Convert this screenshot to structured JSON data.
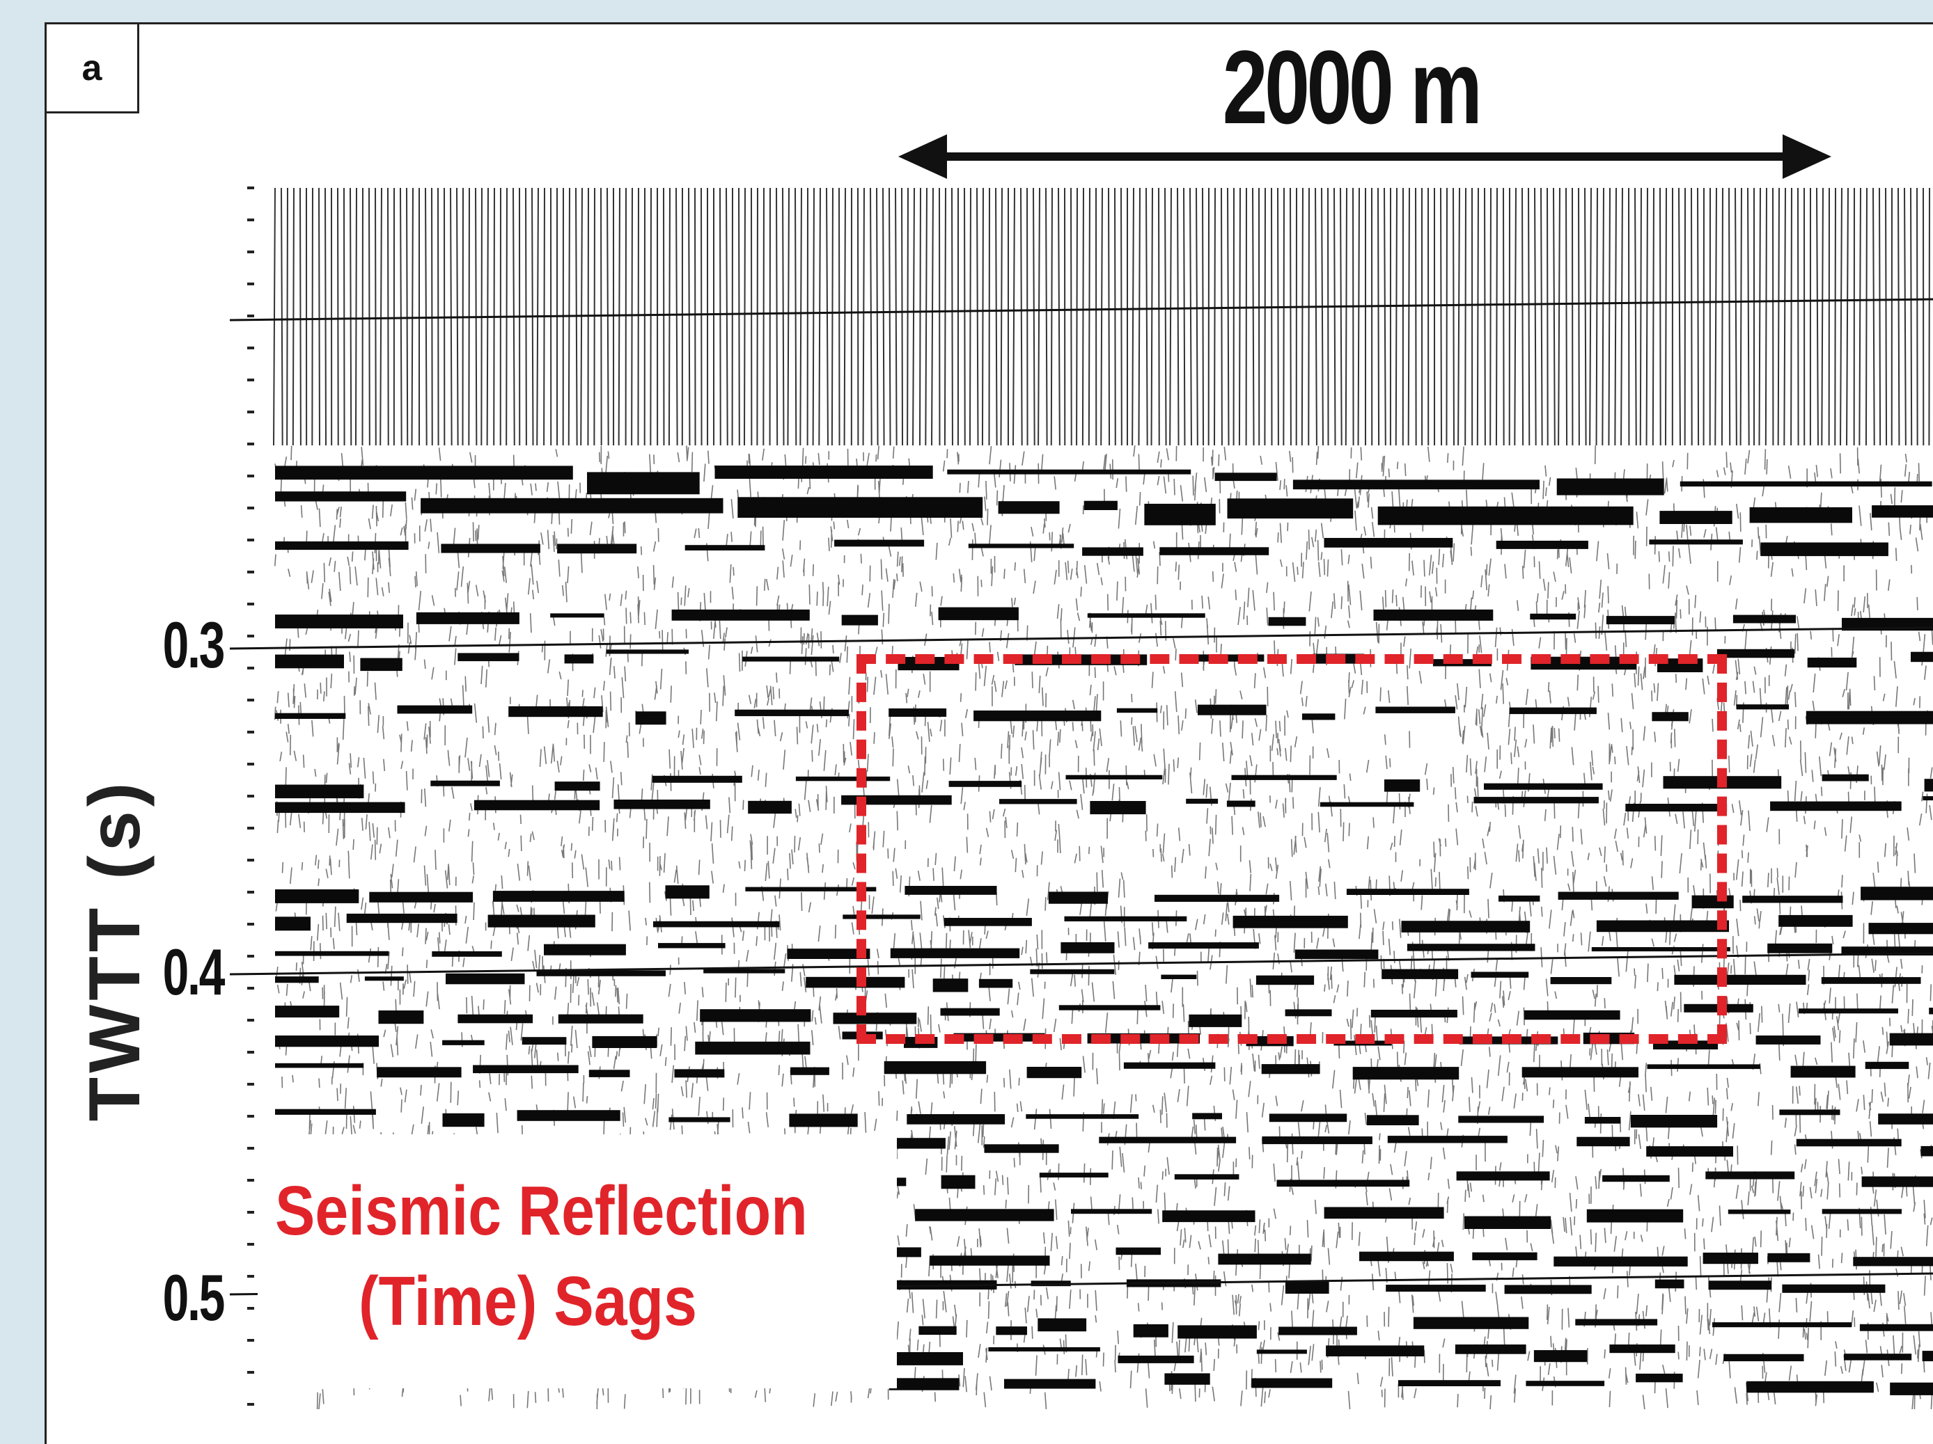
{
  "panel": {
    "label": "a"
  },
  "scale_bar": {
    "label": "2000 m"
  },
  "axis": {
    "title": "TWTT (s)",
    "ticks": [
      "0.3",
      "0.4",
      "0.5"
    ]
  },
  "annotation": {
    "line1": "Seismic Reflection",
    "line2": "(Time) Sags"
  },
  "colors": {
    "background": "#d8e6ee",
    "highlight": "#e0242a",
    "ink": "#111111"
  }
}
